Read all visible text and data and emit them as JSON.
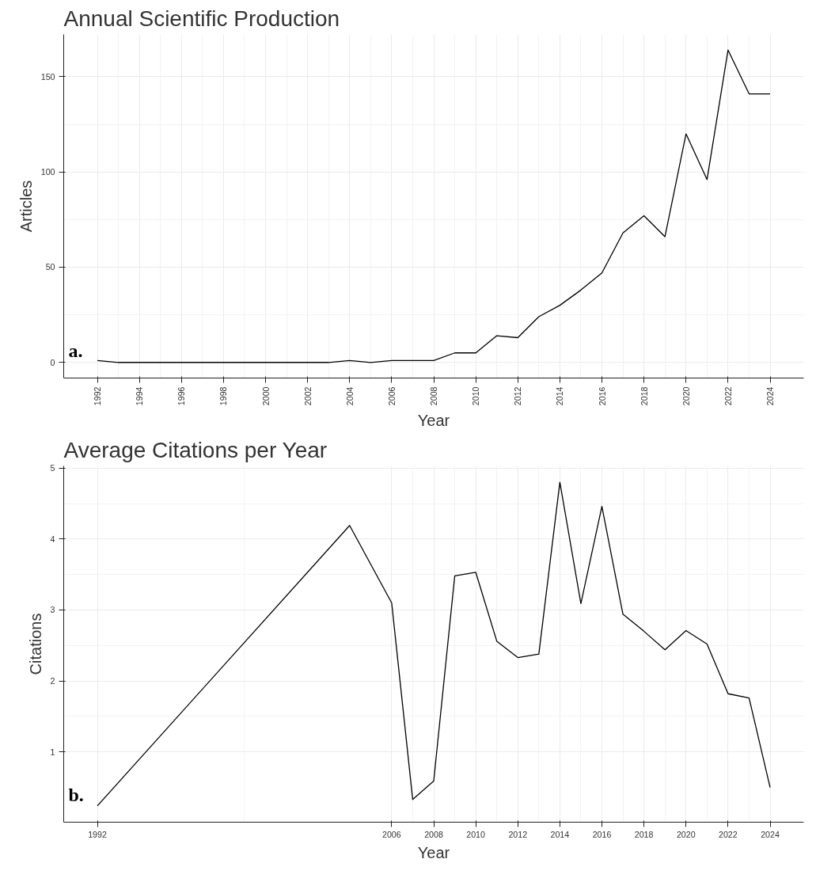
{
  "chart_data": [
    {
      "type": "line",
      "title": "Annual Scientific Production",
      "xlabel": "Year",
      "ylabel": "Articles",
      "annotations": [
        "a."
      ],
      "x": [
        1992,
        1993,
        1994,
        1995,
        1996,
        1997,
        1998,
        1999,
        2000,
        2001,
        2002,
        2003,
        2004,
        2005,
        2006,
        2007,
        2008,
        2009,
        2010,
        2011,
        2012,
        2013,
        2014,
        2015,
        2016,
        2017,
        2018,
        2019,
        2020,
        2021,
        2022,
        2023,
        2024
      ],
      "series": [
        {
          "color": "#000000",
          "values": [
            1,
            0,
            0,
            0,
            0,
            0,
            0,
            0,
            0,
            0,
            0,
            0,
            1,
            0,
            1,
            1,
            1,
            5,
            5,
            14,
            13,
            24,
            30,
            38,
            47,
            68,
            77,
            66,
            120,
            96,
            164,
            141,
            141
          ]
        }
      ],
      "xlim": [
        1990.4,
        2025.6
      ],
      "xticks": [
        1992,
        1994,
        1996,
        1998,
        2000,
        2002,
        2004,
        2006,
        2008,
        2010,
        2012,
        2014,
        2016,
        2018,
        2020,
        2022,
        2024
      ],
      "ylim": [
        -8.2,
        172.2
      ],
      "yticks": [
        0,
        50,
        100,
        150
      ],
      "grid": true,
      "marker": "none",
      "line_style": "solid"
    },
    {
      "type": "line",
      "title": "Average Citations per Year",
      "xlabel": "Year",
      "ylabel": "Citations",
      "annotations": [
        "b."
      ],
      "x": [
        1992,
        2004,
        2006,
        2007,
        2008,
        2009,
        2010,
        2011,
        2012,
        2013,
        2014,
        2015,
        2016,
        2017,
        2018,
        2019,
        2020,
        2021,
        2022,
        2023,
        2024
      ],
      "series": [
        {
          "color": "#000000",
          "values": [
            0.24,
            4.19,
            3.1,
            0.33,
            0.59,
            3.48,
            3.53,
            2.56,
            2.33,
            2.38,
            4.8,
            3.09,
            4.46,
            2.94,
            2.7,
            2.44,
            2.71,
            2.52,
            1.82,
            1.76,
            0.5
          ]
        }
      ],
      "xlim": [
        1990.4,
        2025.6
      ],
      "xticks": [
        1992,
        2006,
        2008,
        2010,
        2012,
        2014,
        2016,
        2018,
        2020,
        2022,
        2024
      ],
      "ylim": [
        0.01,
        5.03
      ],
      "yticks": [
        1,
        2,
        3,
        4,
        5
      ],
      "grid": true,
      "marker": "none",
      "line_style": "solid"
    }
  ]
}
